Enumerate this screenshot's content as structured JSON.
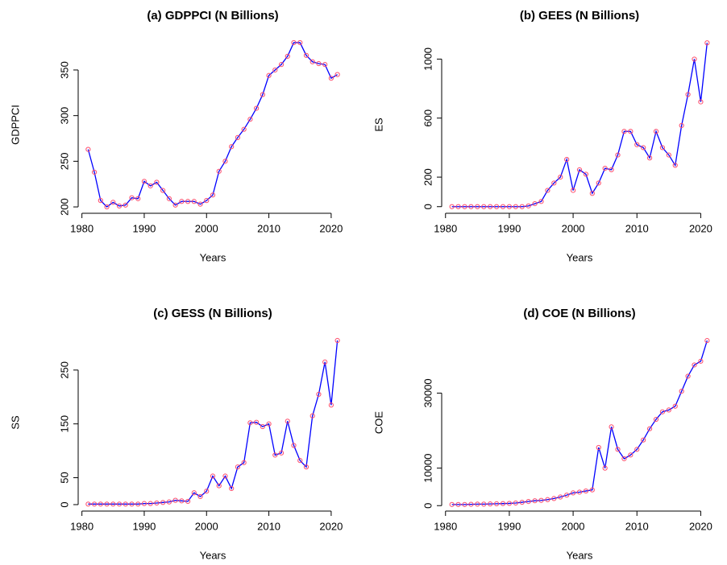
{
  "chart_data": [
    {
      "type": "line",
      "title": "(a) GDPPCI (N Billions)",
      "xlabel": "Years",
      "ylabel": "GDPPCI",
      "x": [
        1981,
        1982,
        1983,
        1984,
        1985,
        1986,
        1987,
        1988,
        1989,
        1990,
        1991,
        1992,
        1993,
        1994,
        1995,
        1996,
        1997,
        1998,
        1999,
        2000,
        2001,
        2002,
        2003,
        2004,
        2005,
        2006,
        2007,
        2008,
        2009,
        2010,
        2011,
        2012,
        2013,
        2014,
        2015,
        2016,
        2017,
        2018,
        2019,
        2020,
        2021
      ],
      "values": [
        263,
        238,
        207,
        200,
        205,
        201,
        202,
        210,
        209,
        228,
        223,
        227,
        218,
        209,
        202,
        206,
        206,
        206,
        203,
        207,
        213,
        239,
        250,
        266,
        276,
        285,
        296,
        308,
        323,
        344,
        350,
        356,
        365,
        380,
        380,
        366,
        359,
        357,
        356,
        341,
        345
      ],
      "color": "#0000ff",
      "marker_color": "#ff4d6d",
      "xlim": [
        1979.4,
        2022.6
      ],
      "xticks": [
        1980,
        1990,
        2000,
        2010,
        2020
      ],
      "ylim": [
        193,
        387
      ],
      "yticks": [
        200,
        250,
        300,
        350
      ]
    },
    {
      "type": "line",
      "title": "(b) GEES (N Billions)",
      "xlabel": "Years",
      "ylabel": "ES",
      "x": [
        1981,
        1982,
        1983,
        1984,
        1985,
        1986,
        1987,
        1988,
        1989,
        1990,
        1991,
        1992,
        1993,
        1994,
        1995,
        1996,
        1997,
        1998,
        1999,
        2000,
        2001,
        2002,
        2003,
        2004,
        2005,
        2006,
        2007,
        2008,
        2009,
        2010,
        2011,
        2012,
        2013,
        2014,
        2015,
        2016,
        2017,
        2018,
        2019,
        2020,
        2021
      ],
      "values": [
        0,
        0,
        0,
        0,
        0,
        0,
        0,
        0,
        0,
        0,
        0,
        0,
        5,
        20,
        35,
        110,
        160,
        200,
        320,
        110,
        250,
        220,
        90,
        160,
        260,
        250,
        350,
        510,
        510,
        420,
        400,
        330,
        510,
        400,
        350,
        280,
        550,
        760,
        1000,
        710,
        1110
      ],
      "color": "#0000ff",
      "marker_color": "#ff4d6d",
      "xlim": [
        1979.4,
        2022.6
      ],
      "xticks": [
        1980,
        1990,
        2000,
        2010,
        2020
      ],
      "ylim": [
        -45,
        1155
      ],
      "yticks": [
        0,
        200,
        600,
        1000
      ]
    },
    {
      "type": "line",
      "title": "(c) GESS (N Billions)",
      "xlabel": "Years",
      "ylabel": "SS",
      "x": [
        1981,
        1982,
        1983,
        1984,
        1985,
        1986,
        1987,
        1988,
        1989,
        1990,
        1991,
        1992,
        1993,
        1994,
        1995,
        1996,
        1997,
        1998,
        1999,
        2000,
        2001,
        2002,
        2003,
        2004,
        2005,
        2006,
        2007,
        2008,
        2009,
        2010,
        2011,
        2012,
        2013,
        2014,
        2015,
        2016,
        2017,
        2018,
        2019,
        2020,
        2021
      ],
      "values": [
        1,
        1,
        1,
        1,
        1,
        1,
        1,
        1,
        1,
        2,
        2,
        3,
        4,
        5,
        8,
        7,
        6,
        22,
        15,
        25,
        53,
        35,
        53,
        30,
        70,
        78,
        152,
        153,
        145,
        150,
        92,
        96,
        155,
        110,
        82,
        70,
        165,
        205,
        265,
        185,
        305
      ],
      "color": "#0000ff",
      "marker_color": "#ff4d6d",
      "xlim": [
        1979.4,
        2022.6
      ],
      "xticks": [
        1980,
        1990,
        2000,
        2010,
        2020
      ],
      "ylim": [
        -12,
        317
      ],
      "yticks": [
        0,
        50,
        150,
        250
      ]
    },
    {
      "type": "line",
      "title": "(d) COE (N Billions)",
      "xlabel": "Years",
      "ylabel": "COE",
      "x": [
        1981,
        1982,
        1983,
        1984,
        1985,
        1986,
        1987,
        1988,
        1989,
        1990,
        1991,
        1992,
        1993,
        1994,
        1995,
        1996,
        1997,
        1998,
        1999,
        2000,
        2001,
        2002,
        2003,
        2004,
        2005,
        2006,
        2007,
        2008,
        2009,
        2010,
        2011,
        2012,
        2013,
        2014,
        2015,
        2016,
        2017,
        2018,
        2019,
        2020,
        2021
      ],
      "values": [
        300,
        300,
        300,
        350,
        400,
        400,
        450,
        500,
        550,
        600,
        700,
        900,
        1100,
        1300,
        1400,
        1600,
        1900,
        2300,
        2800,
        3400,
        3600,
        3900,
        4200,
        15500,
        10000,
        21000,
        15000,
        12500,
        13500,
        15000,
        17500,
        20500,
        23000,
        25000,
        25500,
        26500,
        30500,
        34500,
        37500,
        38500,
        44000
      ],
      "color": "#0000ff",
      "marker_color": "#ff4d6d",
      "xlim": [
        1979.4,
        2022.6
      ],
      "xticks": [
        1980,
        1990,
        2000,
        2010,
        2020
      ],
      "ylim": [
        -1450,
        45750
      ],
      "yticks": [
        0,
        10000,
        30000
      ]
    }
  ]
}
